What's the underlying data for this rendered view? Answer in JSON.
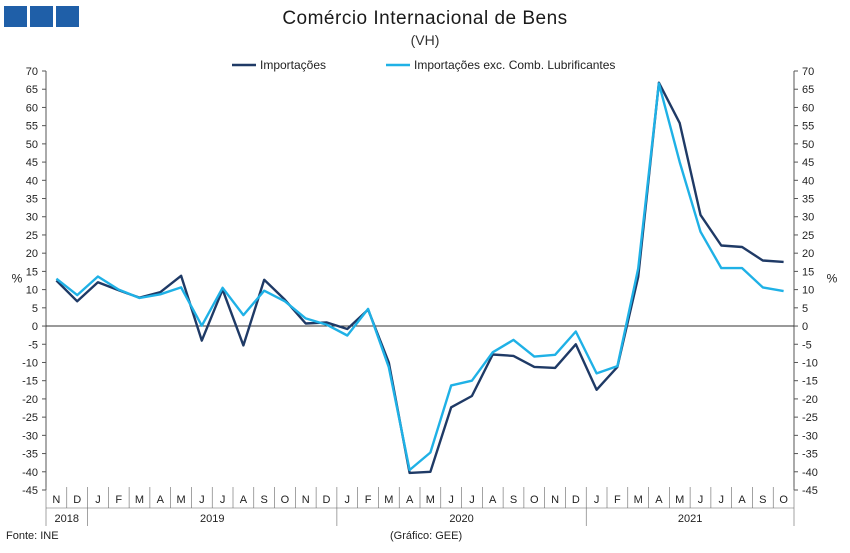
{
  "header": {
    "title": "Comércio Internacional de Bens",
    "subtitle": "(VH)"
  },
  "footer": {
    "source": "Fonte: INE",
    "credit": "(Gráfico: GEE)"
  },
  "colors": {
    "logo": "#1f5fa8",
    "importacoes": "#1f3a66",
    "exc": "#1fb1e6"
  },
  "chart_data": {
    "type": "line",
    "title": "Comércio Internacional de Bens",
    "subtitle": "(VH)",
    "ylabel_left": "%",
    "ylabel_right": "%",
    "ylim": [
      -45,
      70
    ],
    "yticks": [
      70,
      65,
      60,
      55,
      50,
      45,
      40,
      35,
      30,
      25,
      20,
      15,
      10,
      5,
      0,
      -5,
      -10,
      -15,
      -20,
      -25,
      -30,
      -35,
      -40,
      -45
    ],
    "grid": false,
    "legend_position": "top",
    "x": [
      "N",
      "D",
      "J",
      "F",
      "M",
      "A",
      "M",
      "J",
      "J",
      "A",
      "S",
      "O",
      "N",
      "D",
      "J",
      "F",
      "M",
      "A",
      "M",
      "J",
      "J",
      "A",
      "S",
      "O",
      "N",
      "D",
      "J",
      "F",
      "M",
      "A",
      "M",
      "J",
      "J",
      "A",
      "S",
      "O"
    ],
    "years": [
      {
        "label": "2018",
        "start": 0,
        "end": 1
      },
      {
        "label": "2019",
        "start": 2,
        "end": 13
      },
      {
        "label": "2020",
        "start": 14,
        "end": 25
      },
      {
        "label": "2021",
        "start": 26,
        "end": 35
      }
    ],
    "series": [
      {
        "name": "Importações",
        "color": "#1f3a66",
        "values": [
          12.5,
          6.8,
          12.0,
          9.8,
          7.8,
          9.3,
          13.8,
          -4.0,
          10.0,
          -5.3,
          12.7,
          7.2,
          0.7,
          1.0,
          -0.8,
          4.5,
          -10.0,
          -40.3,
          -40.0,
          -22.3,
          -19.2,
          -7.8,
          -8.2,
          -11.2,
          -11.5,
          -5.0,
          -17.5,
          -11.2,
          13.5,
          66.8,
          55.7,
          30.5,
          22.1,
          21.7,
          18.0,
          17.6
        ]
      },
      {
        "name": "Importações exc. Comb. Lubrificantes",
        "color": "#1fb1e6",
        "values": [
          13.0,
          8.5,
          13.6,
          10.0,
          7.7,
          8.7,
          10.6,
          0.1,
          10.5,
          3.0,
          9.7,
          6.8,
          2.1,
          0.4,
          -2.6,
          4.7,
          -11.3,
          -39.5,
          -34.7,
          -16.3,
          -15.0,
          -7.2,
          -3.8,
          -8.4,
          -7.9,
          -1.5,
          -13.0,
          -11.0,
          15.8,
          66.6,
          45.0,
          25.9,
          15.9,
          15.9,
          10.6,
          9.6
        ]
      }
    ]
  }
}
